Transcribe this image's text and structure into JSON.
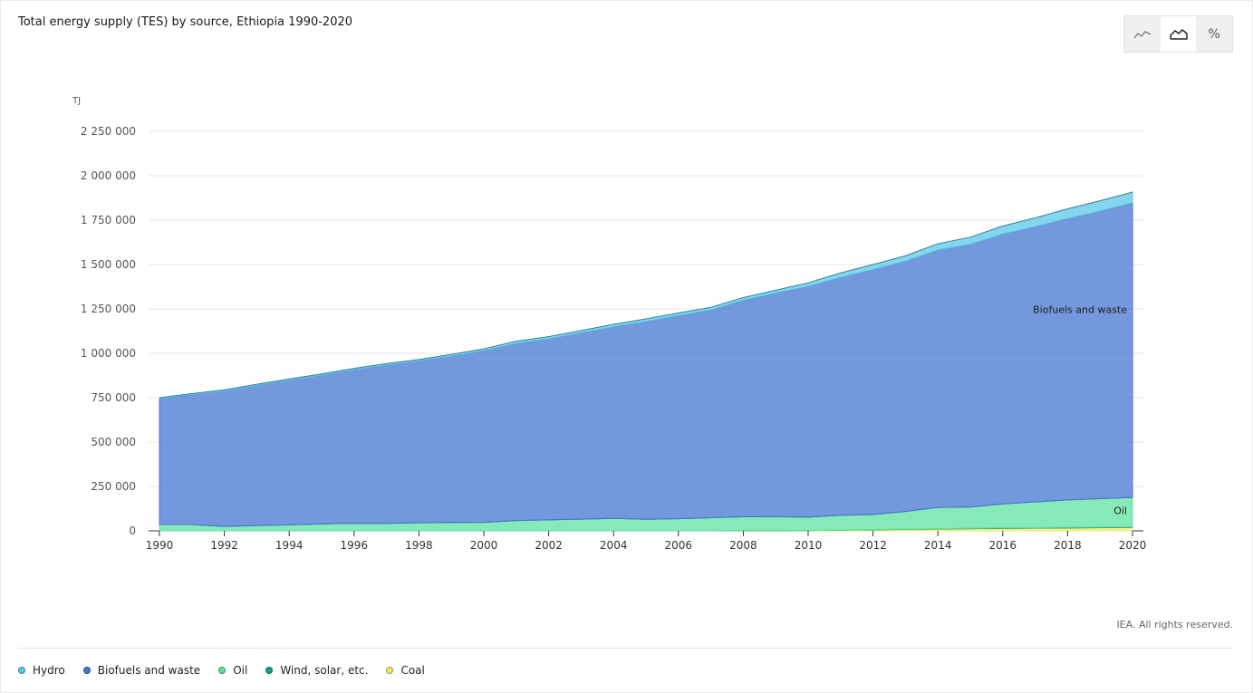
{
  "title": "Total energy supply (TES) by source, Ethiopia 1990-2020",
  "toolbar": {
    "icons": [
      "line-chart-icon",
      "area-chart-icon",
      "percent-icon"
    ],
    "percent_label": "%",
    "active": "area-chart-icon"
  },
  "copyright": "IEA. All rights reserved.",
  "legend": {
    "items": [
      {
        "label": "Hydro",
        "color": "#5ac8e8"
      },
      {
        "label": "Biofuels and waste",
        "color": "#4575d1"
      },
      {
        "label": "Oil",
        "color": "#5de3a0"
      },
      {
        "label": "Wind, solar, etc.",
        "color": "#16a08a"
      },
      {
        "label": "Coal",
        "color": "#f2eb6a"
      }
    ]
  },
  "chart_data": {
    "type": "area",
    "stacked": true,
    "ylabel": "TJ",
    "ylim": [
      0,
      2250000
    ],
    "yticks": [
      0,
      250000,
      500000,
      750000,
      1000000,
      1250000,
      1500000,
      1750000,
      2000000,
      2250000
    ],
    "ytick_labels": [
      "0",
      "250 000",
      "500 000",
      "750 000",
      "1 000 000",
      "1 250 000",
      "1 500 000",
      "1 750 000",
      "2 000 000",
      "2 250 000"
    ],
    "xlim": [
      1990,
      2020
    ],
    "xtick_labels": [
      "1990",
      "1992",
      "1994",
      "1996",
      "1998",
      "2000",
      "2002",
      "2004",
      "2006",
      "2008",
      "2010",
      "2012",
      "2014",
      "2016",
      "2018",
      "2020"
    ],
    "x": [
      1990,
      1991,
      1992,
      1993,
      1994,
      1995,
      1996,
      1997,
      1998,
      1999,
      2000,
      2001,
      2002,
      2003,
      2004,
      2005,
      2006,
      2007,
      2008,
      2009,
      2010,
      2011,
      2012,
      2013,
      2014,
      2015,
      2016,
      2017,
      2018,
      2019,
      2020
    ],
    "grid": true,
    "series": [
      {
        "name": "Coal",
        "color": "#f2eb6a",
        "values": [
          0,
          0,
          0,
          0,
          0,
          0,
          0,
          0,
          0,
          0,
          0,
          0,
          0,
          0,
          0,
          0,
          0,
          0,
          1000,
          1000,
          2000,
          4000,
          6000,
          8000,
          10000,
          12000,
          14000,
          15000,
          16000,
          18000,
          20000
        ]
      },
      {
        "name": "Wind, solar, etc.",
        "color": "#16a08a",
        "values": [
          0,
          0,
          0,
          0,
          0,
          0,
          0,
          0,
          0,
          0,
          0,
          0,
          0,
          0,
          0,
          0,
          0,
          0,
          0,
          0,
          0,
          0,
          1000,
          1000,
          2000,
          2000,
          3000,
          3000,
          3000,
          3000,
          3000
        ]
      },
      {
        "name": "Oil",
        "color": "#5de3a0",
        "values": [
          36000,
          36000,
          25000,
          30000,
          34000,
          39000,
          43000,
          42000,
          45000,
          47000,
          48000,
          58000,
          62000,
          66000,
          70000,
          65000,
          68000,
          74000,
          78000,
          79000,
          75000,
          84000,
          85000,
          100000,
          120000,
          120000,
          135000,
          145000,
          155000,
          160000,
          165000
        ]
      },
      {
        "name": "Biofuels and waste",
        "color": "#4575d1",
        "values": [
          709000,
          732000,
          763000,
          790000,
          815000,
          838000,
          865000,
          892000,
          912000,
          938000,
          967000,
          998000,
          1020000,
          1050000,
          1080000,
          1115000,
          1145000,
          1170000,
          1220000,
          1260000,
          1300000,
          1340000,
          1380000,
          1410000,
          1450000,
          1480000,
          1520000,
          1550000,
          1585000,
          1620000,
          1660000
        ]
      },
      {
        "name": "Hydro",
        "color": "#5ac8e8",
        "values": [
          5000,
          5000,
          6000,
          6000,
          6000,
          7000,
          7000,
          8000,
          8000,
          9000,
          10000,
          12000,
          12000,
          12000,
          13000,
          14000,
          14000,
          15000,
          15000,
          15000,
          20000,
          25000,
          28000,
          30000,
          35000,
          40000,
          45000,
          50000,
          55000,
          58000,
          60000
        ]
      }
    ],
    "annotations": [
      {
        "text": "Biofuels and waste",
        "series": "Biofuels and waste"
      },
      {
        "text": "Oil",
        "series": "Oil"
      }
    ]
  }
}
